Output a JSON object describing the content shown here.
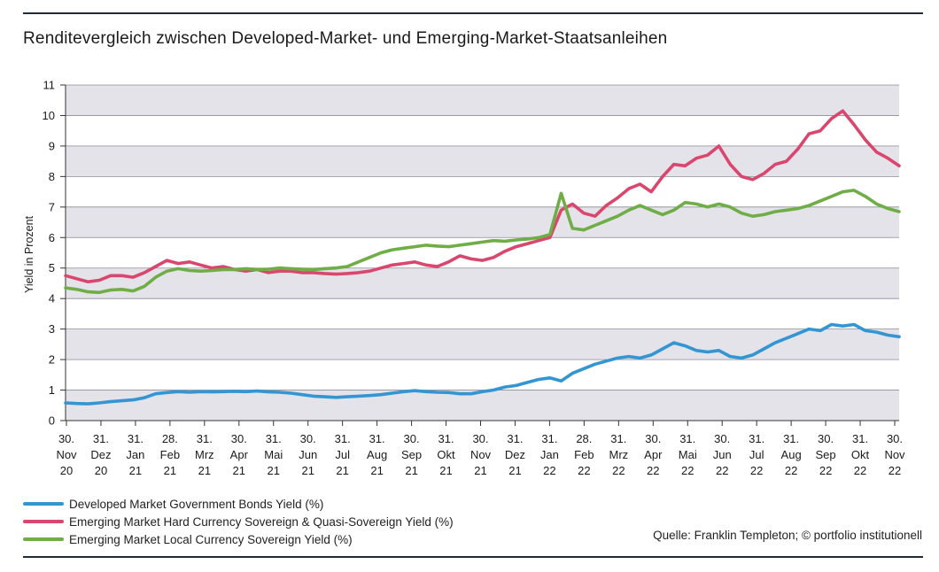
{
  "page": {
    "title": "Renditevergleich zwischen Developed-Market- und Emerging-Market-Staatsanleihen",
    "source": "Quelle: Franklin Templeton; © portfolio institutionell"
  },
  "chart_data": {
    "type": "line",
    "ylabel": "Yield in Prozent",
    "ylim": [
      0,
      11
    ],
    "y_ticks": [
      0,
      1,
      2,
      3,
      4,
      5,
      6,
      7,
      8,
      9,
      10,
      11
    ],
    "x_tick_labels": [
      [
        "30.",
        "Nov",
        "20"
      ],
      [
        "31.",
        "Dez",
        "20"
      ],
      [
        "31.",
        "Jan",
        "21"
      ],
      [
        "28.",
        "Feb",
        "21"
      ],
      [
        "31.",
        "Mrz",
        "21"
      ],
      [
        "30.",
        "Apr",
        "21"
      ],
      [
        "31.",
        "Mai",
        "21"
      ],
      [
        "30.",
        "Jun",
        "21"
      ],
      [
        "31.",
        "Jul",
        "21"
      ],
      [
        "31.",
        "Aug",
        "21"
      ],
      [
        "30.",
        "Sep",
        "21"
      ],
      [
        "31.",
        "Okt",
        "21"
      ],
      [
        "30.",
        "Nov",
        "21"
      ],
      [
        "31.",
        "Dez",
        "21"
      ],
      [
        "31.",
        "Jan",
        "22"
      ],
      [
        "28.",
        "Feb",
        "22"
      ],
      [
        "31.",
        "Mrz",
        "22"
      ],
      [
        "30.",
        "Apr",
        "22"
      ],
      [
        "31.",
        "Mai",
        "22"
      ],
      [
        "30.",
        "Jun",
        "22"
      ],
      [
        "31.",
        "Jul",
        "22"
      ],
      [
        "31.",
        "Aug",
        "22"
      ],
      [
        "30.",
        "Sep",
        "22"
      ],
      [
        "31.",
        "Okt",
        "22"
      ],
      [
        "30.",
        "Nov",
        "22"
      ]
    ],
    "grid": "horizontal bands",
    "legend_position": "bottom-left",
    "series": [
      {
        "name": "Developed Market Government Bonds Yield (%)",
        "color": "#3396d3",
        "values": [
          0.58,
          0.56,
          0.55,
          0.58,
          0.62,
          0.65,
          0.68,
          0.75,
          0.88,
          0.92,
          0.95,
          0.93,
          0.95,
          0.94,
          0.95,
          0.96,
          0.95,
          0.97,
          0.94,
          0.93,
          0.9,
          0.85,
          0.8,
          0.78,
          0.76,
          0.78,
          0.8,
          0.82,
          0.85,
          0.9,
          0.95,
          0.98,
          0.95,
          0.93,
          0.92,
          0.88,
          0.88,
          0.95,
          1.0,
          1.1,
          1.15,
          1.25,
          1.35,
          1.4,
          1.3,
          1.55,
          1.7,
          1.85,
          1.95,
          2.05,
          2.1,
          2.05,
          2.15,
          2.35,
          2.55,
          2.45,
          2.3,
          2.25,
          2.3,
          2.1,
          2.05,
          2.15,
          2.35,
          2.55,
          2.7,
          2.85,
          3.0,
          2.95,
          3.15,
          3.1,
          3.15,
          2.95,
          2.9,
          2.8,
          2.75
        ]
      },
      {
        "name": "Emerging Market Hard Currency Sovereign & Quasi-Sovereign Yield (%)",
        "color": "#d9476e",
        "values": [
          4.75,
          4.65,
          4.55,
          4.6,
          4.75,
          4.75,
          4.7,
          4.85,
          5.05,
          5.25,
          5.15,
          5.2,
          5.1,
          5.0,
          5.05,
          4.95,
          4.9,
          4.95,
          4.85,
          4.9,
          4.9,
          4.85,
          4.85,
          4.82,
          4.8,
          4.82,
          4.85,
          4.9,
          5.0,
          5.1,
          5.15,
          5.2,
          5.1,
          5.05,
          5.2,
          5.4,
          5.3,
          5.25,
          5.35,
          5.55,
          5.7,
          5.8,
          5.9,
          6.0,
          6.9,
          7.1,
          6.8,
          6.7,
          7.05,
          7.3,
          7.6,
          7.75,
          7.5,
          8.0,
          8.4,
          8.35,
          8.6,
          8.7,
          9.0,
          8.4,
          8.0,
          7.9,
          8.1,
          8.4,
          8.5,
          8.9,
          9.4,
          9.5,
          9.9,
          10.15,
          9.7,
          9.2,
          8.8,
          8.6,
          8.35
        ]
      },
      {
        "name": "Emerging Market Local Currency Sovereign Yield (%)",
        "color": "#6fae47",
        "values": [
          4.35,
          4.3,
          4.22,
          4.2,
          4.28,
          4.3,
          4.25,
          4.4,
          4.7,
          4.9,
          4.98,
          4.92,
          4.9,
          4.92,
          4.95,
          4.95,
          4.98,
          4.95,
          4.96,
          5.0,
          4.98,
          4.96,
          4.95,
          4.98,
          5.0,
          5.05,
          5.2,
          5.35,
          5.5,
          5.6,
          5.65,
          5.7,
          5.75,
          5.72,
          5.7,
          5.75,
          5.8,
          5.85,
          5.9,
          5.88,
          5.92,
          5.95,
          6.0,
          6.1,
          7.45,
          6.3,
          6.25,
          6.4,
          6.55,
          6.7,
          6.9,
          7.05,
          6.9,
          6.75,
          6.9,
          7.15,
          7.1,
          7.0,
          7.1,
          7.0,
          6.8,
          6.7,
          6.75,
          6.85,
          6.9,
          6.95,
          7.05,
          7.2,
          7.35,
          7.5,
          7.55,
          7.35,
          7.1,
          6.95,
          6.85
        ]
      }
    ]
  }
}
